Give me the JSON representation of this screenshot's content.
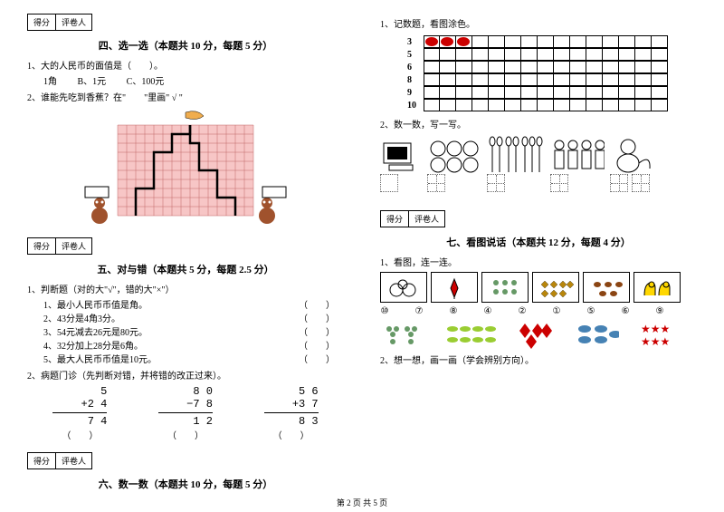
{
  "scorebox": {
    "left": "得分",
    "right": "评卷人"
  },
  "sec4": {
    "title": "四、选一选（本题共 10 分，每题 5 分）",
    "q1": "1、大的人民币的面值是（　　）。",
    "q1opts": {
      "a": "1角",
      "b": "B、1元",
      "c": "C、100元"
    },
    "q2": "2、谁能先吃到香蕉？在\"　　\"里画\" √ \""
  },
  "sec5": {
    "title": "五、对与错（本题共 5 分，每题 2.5 分）",
    "q1": "1、判断题（对的大\"√\"，错的大\"×\"）",
    "items": [
      "1、最小人民币币值是角。",
      "2、43分是4角3分。",
      "3、54元减去26元是80元。",
      "4、32分加上28分是6角。",
      "5、最大人民币币值是10元。"
    ],
    "paren": "（　　）",
    "q2": "2、病题门诊（先判断对错，并将错的改正过来）。",
    "m1": {
      "a": "5",
      "b": "+2 4",
      "r": "7 4"
    },
    "m2": {
      "a": "8 0",
      "b": "−7 8",
      "r": "1 2"
    },
    "m3": {
      "a": "5 6",
      "b": "+3 7",
      "r": "8 3"
    },
    "chk": "（　　）"
  },
  "sec6": {
    "title": "六、数一数（本题共 10 分，每题 5 分）",
    "q1": "1、记数题，看图涂色。",
    "nums": [
      "3",
      "5",
      "6",
      "8",
      "9",
      "10"
    ],
    "filled": 3,
    "cols": 15,
    "q2": "2、数一数，写一写。"
  },
  "sec7": {
    "title": "七、看图说话（本题共 12 分，每题 4 分）",
    "q1": "1、看图，连一连。",
    "labels": [
      "⑩",
      "⑦",
      "⑧",
      "④",
      "②",
      "①",
      "⑤",
      "⑥",
      "⑨"
    ],
    "q2": "2、想一想，画一画（学会辨别方向）。"
  },
  "colors": {
    "gridFill": "#f7c6c6",
    "gridLine": "#c06666",
    "path": "#000",
    "bead": "#c00"
  },
  "footer": "第 2 页 共 5 页"
}
